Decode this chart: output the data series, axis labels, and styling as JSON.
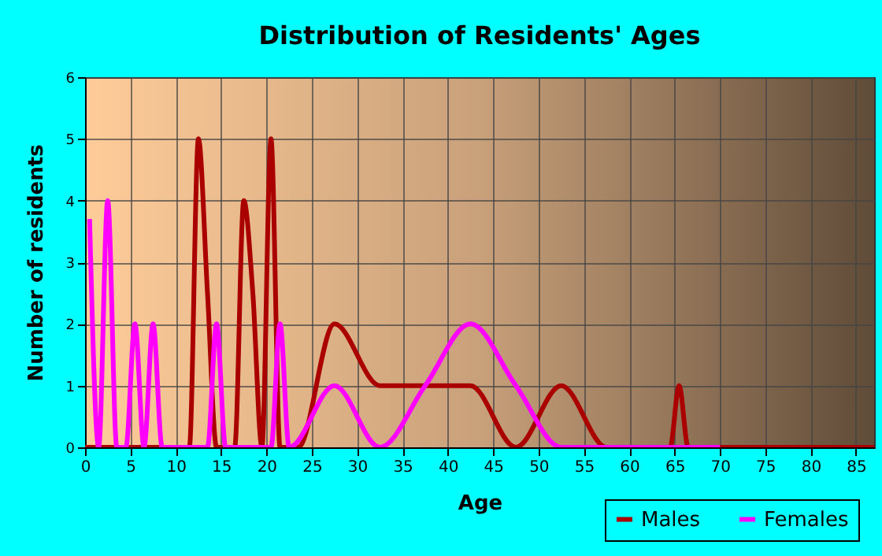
{
  "chart_data": {
    "type": "line",
    "title": "Distribution of Residents' Ages",
    "xlabel": "Age",
    "ylabel": "Number of residents",
    "xlim": [
      0,
      87
    ],
    "xticks": [
      0,
      5,
      10,
      15,
      20,
      25,
      30,
      35,
      40,
      45,
      50,
      55,
      60,
      65,
      70,
      75,
      80,
      85
    ],
    "ylim": [
      0,
      6
    ],
    "yticks": [
      0,
      1,
      2,
      3,
      4,
      5,
      6
    ],
    "grid": true,
    "legend": "bottom right",
    "series": [
      {
        "name": "Males",
        "color": "#aa0000",
        "x": [
          0,
          5,
          11.5,
          12.5,
          13.5,
          14.5,
          16.5,
          17.5,
          18.5,
          19.5,
          20.5,
          21.5,
          22.5,
          23.5,
          27.5,
          32.5,
          37.5,
          42.5,
          47.5,
          52.5,
          57.5,
          62.5,
          64.5,
          65.5,
          66.5,
          67.5,
          87
        ],
        "values": [
          0,
          0,
          0,
          5,
          2.5,
          0,
          0,
          4,
          2.5,
          0,
          5,
          0,
          0,
          0,
          2,
          1,
          1,
          1,
          0,
          1,
          0,
          0,
          0,
          1,
          0,
          0,
          0
        ]
      },
      {
        "name": "Females",
        "color": "#ff00ff",
        "x": [
          0.5,
          1.5,
          2.5,
          3.5,
          4.5,
          5.5,
          6.5,
          7.5,
          8.5,
          13.5,
          14.5,
          15.5,
          20.5,
          21.5,
          22.5,
          27.5,
          32.5,
          37.5,
          42.5,
          47.5,
          52.5,
          70
        ],
        "values": [
          3.7,
          0,
          4,
          0,
          0,
          2,
          0,
          2,
          0,
          0,
          2,
          0,
          0,
          2,
          0,
          1,
          0,
          1,
          2,
          1,
          0,
          0
        ]
      }
    ]
  }
}
